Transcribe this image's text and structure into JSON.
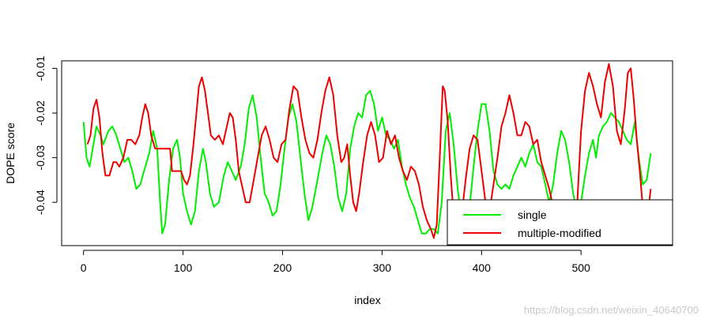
{
  "chart_data": {
    "type": "line",
    "xlabel": "index",
    "ylabel": "DOPE score",
    "xlim": [
      -22,
      592
    ],
    "ylim": [
      -0.0497,
      -0.0083
    ],
    "x_ticks": [
      0,
      100,
      200,
      300,
      400,
      500
    ],
    "y_ticks": [
      -0.04,
      -0.03,
      -0.02,
      -0.01
    ],
    "legend_position": "bottom-right",
    "grid": false,
    "series": [
      {
        "name": "single",
        "color": "#00ee00",
        "points": [
          [
            0,
            -0.022
          ],
          [
            3,
            -0.03
          ],
          [
            6,
            -0.032
          ],
          [
            10,
            -0.027
          ],
          [
            13,
            -0.023
          ],
          [
            17,
            -0.025
          ],
          [
            20,
            -0.027
          ],
          [
            25,
            -0.024
          ],
          [
            29,
            -0.023
          ],
          [
            33,
            -0.025
          ],
          [
            37,
            -0.028
          ],
          [
            41,
            -0.031
          ],
          [
            45,
            -0.03
          ],
          [
            49,
            -0.033
          ],
          [
            53,
            -0.037
          ],
          [
            57,
            -0.036
          ],
          [
            62,
            -0.032
          ],
          [
            66,
            -0.029
          ],
          [
            70,
            -0.024
          ],
          [
            74,
            -0.028
          ],
          [
            77,
            -0.04
          ],
          [
            79,
            -0.047
          ],
          [
            82,
            -0.045
          ],
          [
            86,
            -0.035
          ],
          [
            90,
            -0.028
          ],
          [
            94,
            -0.026
          ],
          [
            97,
            -0.03
          ],
          [
            100,
            -0.038
          ],
          [
            104,
            -0.042
          ],
          [
            108,
            -0.045
          ],
          [
            112,
            -0.042
          ],
          [
            116,
            -0.033
          ],
          [
            120,
            -0.028
          ],
          [
            123,
            -0.031
          ],
          [
            127,
            -0.038
          ],
          [
            131,
            -0.041
          ],
          [
            136,
            -0.04
          ],
          [
            141,
            -0.034
          ],
          [
            145,
            -0.031
          ],
          [
            149,
            -0.033
          ],
          [
            153,
            -0.035
          ],
          [
            158,
            -0.032
          ],
          [
            162,
            -0.027
          ],
          [
            166,
            -0.019
          ],
          [
            170,
            -0.016
          ],
          [
            174,
            -0.021
          ],
          [
            178,
            -0.03
          ],
          [
            182,
            -0.038
          ],
          [
            186,
            -0.04
          ],
          [
            190,
            -0.043
          ],
          [
            194,
            -0.042
          ],
          [
            198,
            -0.036
          ],
          [
            202,
            -0.028
          ],
          [
            206,
            -0.021
          ],
          [
            210,
            -0.018
          ],
          [
            214,
            -0.022
          ],
          [
            218,
            -0.03
          ],
          [
            222,
            -0.038
          ],
          [
            226,
            -0.044
          ],
          [
            230,
            -0.041
          ],
          [
            235,
            -0.035
          ],
          [
            240,
            -0.029
          ],
          [
            244,
            -0.025
          ],
          [
            248,
            -0.027
          ],
          [
            252,
            -0.032
          ],
          [
            256,
            -0.039
          ],
          [
            260,
            -0.042
          ],
          [
            264,
            -0.038
          ],
          [
            268,
            -0.028
          ],
          [
            272,
            -0.023
          ],
          [
            276,
            -0.02
          ],
          [
            280,
            -0.021
          ],
          [
            284,
            -0.016
          ],
          [
            288,
            -0.015
          ],
          [
            292,
            -0.018
          ],
          [
            296,
            -0.024
          ],
          [
            300,
            -0.021
          ],
          [
            304,
            -0.025
          ],
          [
            308,
            -0.026
          ],
          [
            312,
            -0.028
          ],
          [
            316,
            -0.026
          ],
          [
            320,
            -0.032
          ],
          [
            324,
            -0.036
          ],
          [
            328,
            -0.039
          ],
          [
            332,
            -0.041
          ],
          [
            336,
            -0.044
          ],
          [
            340,
            -0.047
          ],
          [
            344,
            -0.047
          ],
          [
            348,
            -0.046
          ],
          [
            352,
            -0.046
          ],
          [
            356,
            -0.047
          ],
          [
            360,
            -0.04
          ],
          [
            364,
            -0.024
          ],
          [
            368,
            -0.02
          ],
          [
            372,
            -0.027
          ],
          [
            376,
            -0.037
          ],
          [
            380,
            -0.044
          ],
          [
            384,
            -0.046
          ],
          [
            388,
            -0.041
          ],
          [
            392,
            -0.032
          ],
          [
            396,
            -0.024
          ],
          [
            400,
            -0.018
          ],
          [
            404,
            -0.018
          ],
          [
            408,
            -0.024
          ],
          [
            412,
            -0.033
          ],
          [
            416,
            -0.036
          ],
          [
            420,
            -0.037
          ],
          [
            424,
            -0.036
          ],
          [
            428,
            -0.037
          ],
          [
            432,
            -0.034
          ],
          [
            436,
            -0.032
          ],
          [
            440,
            -0.03
          ],
          [
            444,
            -0.032
          ],
          [
            448,
            -0.029
          ],
          [
            452,
            -0.027
          ],
          [
            456,
            -0.031
          ],
          [
            460,
            -0.032
          ],
          [
            464,
            -0.036
          ],
          [
            468,
            -0.04
          ],
          [
            472,
            -0.036
          ],
          [
            476,
            -0.029
          ],
          [
            480,
            -0.024
          ],
          [
            484,
            -0.026
          ],
          [
            488,
            -0.031
          ],
          [
            492,
            -0.038
          ],
          [
            496,
            -0.042
          ],
          [
            500,
            -0.04
          ],
          [
            504,
            -0.034
          ],
          [
            508,
            -0.029
          ],
          [
            512,
            -0.026
          ],
          [
            515,
            -0.03
          ],
          [
            518,
            -0.025
          ],
          [
            522,
            -0.023
          ],
          [
            526,
            -0.022
          ],
          [
            530,
            -0.02
          ],
          [
            534,
            -0.021
          ],
          [
            538,
            -0.022
          ],
          [
            542,
            -0.024
          ],
          [
            546,
            -0.026
          ],
          [
            550,
            -0.027
          ],
          [
            554,
            -0.022
          ],
          [
            558,
            -0.03
          ],
          [
            562,
            -0.036
          ],
          [
            566,
            -0.035
          ],
          [
            570,
            -0.029
          ]
        ]
      },
      {
        "name": "multiple-modified",
        "color": "#ee0000",
        "points": [
          [
            4,
            -0.027
          ],
          [
            7,
            -0.025
          ],
          [
            10,
            -0.019
          ],
          [
            13,
            -0.017
          ],
          [
            16,
            -0.021
          ],
          [
            19,
            -0.029
          ],
          [
            22,
            -0.034
          ],
          [
            26,
            -0.034
          ],
          [
            30,
            -0.031
          ],
          [
            33,
            -0.031
          ],
          [
            36,
            -0.032
          ],
          [
            40,
            -0.03
          ],
          [
            44,
            -0.026
          ],
          [
            48,
            -0.026
          ],
          [
            52,
            -0.027
          ],
          [
            56,
            -0.025
          ],
          [
            59,
            -0.021
          ],
          [
            62,
            -0.018
          ],
          [
            65,
            -0.02
          ],
          [
            68,
            -0.025
          ],
          [
            72,
            -0.028
          ],
          [
            76,
            -0.028
          ],
          [
            80,
            -0.028
          ],
          [
            84,
            -0.028
          ],
          [
            87,
            -0.028
          ],
          [
            89,
            -0.033
          ],
          [
            92,
            -0.033
          ],
          [
            95,
            -0.033
          ],
          [
            98,
            -0.033
          ],
          [
            101,
            -0.035
          ],
          [
            104,
            -0.036
          ],
          [
            107,
            -0.034
          ],
          [
            110,
            -0.028
          ],
          [
            113,
            -0.021
          ],
          [
            116,
            -0.014
          ],
          [
            119,
            -0.012
          ],
          [
            122,
            -0.015
          ],
          [
            125,
            -0.02
          ],
          [
            128,
            -0.025
          ],
          [
            132,
            -0.026
          ],
          [
            136,
            -0.025
          ],
          [
            140,
            -0.027
          ],
          [
            144,
            -0.023
          ],
          [
            147,
            -0.02
          ],
          [
            150,
            -0.021
          ],
          [
            153,
            -0.026
          ],
          [
            156,
            -0.033
          ],
          [
            160,
            -0.037
          ],
          [
            163,
            -0.04
          ],
          [
            167,
            -0.04
          ],
          [
            171,
            -0.035
          ],
          [
            175,
            -0.03
          ],
          [
            179,
            -0.025
          ],
          [
            183,
            -0.023
          ],
          [
            187,
            -0.026
          ],
          [
            191,
            -0.03
          ],
          [
            195,
            -0.031
          ],
          [
            199,
            -0.027
          ],
          [
            203,
            -0.026
          ],
          [
            207,
            -0.019
          ],
          [
            211,
            -0.014
          ],
          [
            215,
            -0.015
          ],
          [
            219,
            -0.021
          ],
          [
            223,
            -0.026
          ],
          [
            227,
            -0.029
          ],
          [
            231,
            -0.03
          ],
          [
            235,
            -0.026
          ],
          [
            239,
            -0.02
          ],
          [
            243,
            -0.015
          ],
          [
            247,
            -0.012
          ],
          [
            251,
            -0.016
          ],
          [
            255,
            -0.025
          ],
          [
            259,
            -0.031
          ],
          [
            262,
            -0.03
          ],
          [
            265,
            -0.027
          ],
          [
            268,
            -0.034
          ],
          [
            271,
            -0.04
          ],
          [
            274,
            -0.042
          ],
          [
            277,
            -0.038
          ],
          [
            281,
            -0.031
          ],
          [
            285,
            -0.025
          ],
          [
            289,
            -0.022
          ],
          [
            293,
            -0.025
          ],
          [
            297,
            -0.031
          ],
          [
            301,
            -0.03
          ],
          [
            305,
            -0.024
          ],
          [
            309,
            -0.027
          ],
          [
            313,
            -0.025
          ],
          [
            317,
            -0.03
          ],
          [
            321,
            -0.033
          ],
          [
            325,
            -0.035
          ],
          [
            329,
            -0.032
          ],
          [
            333,
            -0.033
          ],
          [
            337,
            -0.036
          ],
          [
            341,
            -0.041
          ],
          [
            345,
            -0.044
          ],
          [
            349,
            -0.046
          ],
          [
            352,
            -0.048
          ],
          [
            355,
            -0.045
          ],
          [
            358,
            -0.03
          ],
          [
            361,
            -0.014
          ],
          [
            363,
            -0.015
          ],
          [
            366,
            -0.022
          ],
          [
            369,
            -0.034
          ],
          [
            372,
            -0.043
          ],
          [
            376,
            -0.047
          ],
          [
            380,
            -0.043
          ],
          [
            384,
            -0.035
          ],
          [
            388,
            -0.028
          ],
          [
            392,
            -0.025
          ],
          [
            396,
            -0.026
          ],
          [
            400,
            -0.033
          ],
          [
            404,
            -0.04
          ],
          [
            408,
            -0.042
          ],
          [
            412,
            -0.036
          ],
          [
            416,
            -0.03
          ],
          [
            420,
            -0.023
          ],
          [
            424,
            -0.02
          ],
          [
            428,
            -0.016
          ],
          [
            432,
            -0.02
          ],
          [
            436,
            -0.025
          ],
          [
            440,
            -0.025
          ],
          [
            444,
            -0.022
          ],
          [
            448,
            -0.023
          ],
          [
            452,
            -0.027
          ],
          [
            456,
            -0.026
          ],
          [
            460,
            -0.031
          ],
          [
            464,
            -0.034
          ],
          [
            468,
            -0.037
          ],
          [
            472,
            -0.041
          ],
          [
            476,
            -0.044
          ],
          [
            480,
            -0.044
          ],
          [
            484,
            -0.045
          ],
          [
            488,
            -0.043
          ],
          [
            492,
            -0.04
          ],
          [
            496,
            -0.041
          ],
          [
            500,
            -0.024
          ],
          [
            504,
            -0.015
          ],
          [
            508,
            -0.011
          ],
          [
            512,
            -0.014
          ],
          [
            516,
            -0.018
          ],
          [
            520,
            -0.021
          ],
          [
            524,
            -0.013
          ],
          [
            528,
            -0.009
          ],
          [
            532,
            -0.014
          ],
          [
            536,
            -0.024
          ],
          [
            540,
            -0.027
          ],
          [
            544,
            -0.019
          ],
          [
            547,
            -0.011
          ],
          [
            550,
            -0.01
          ],
          [
            553,
            -0.017
          ],
          [
            556,
            -0.026
          ],
          [
            559,
            -0.033
          ],
          [
            562,
            -0.041
          ],
          [
            565,
            -0.05
          ],
          [
            568,
            -0.041
          ],
          [
            570,
            -0.037
          ]
        ]
      }
    ]
  },
  "watermark": "https://blog.csdn.net/weixin_40640700"
}
